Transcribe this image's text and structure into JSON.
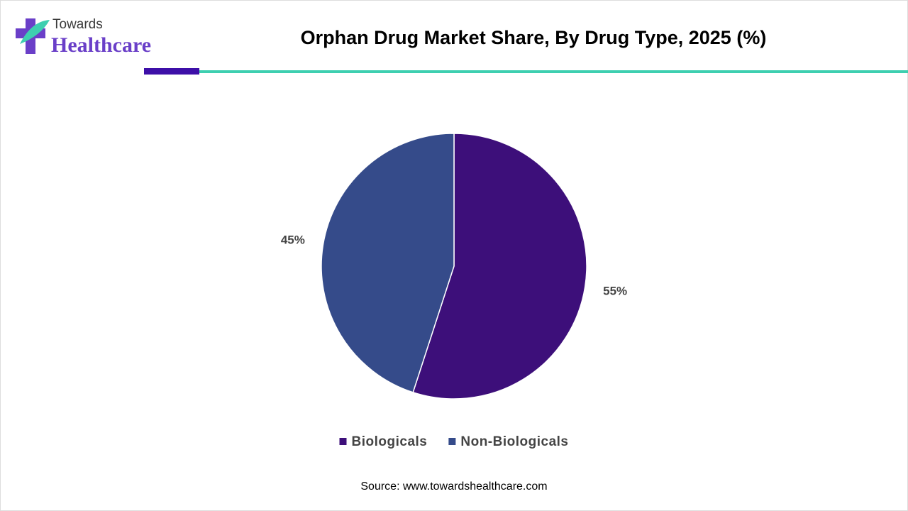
{
  "logo": {
    "top": "Towards",
    "bottom": "Healthcare"
  },
  "chart_data": {
    "type": "pie",
    "title": "Orphan Drug Market Share, By Drug Type, 2025 (%)",
    "categories": [
      "Biologicals",
      "Non-Biologicals"
    ],
    "values": [
      55,
      45
    ],
    "value_labels": [
      "55%",
      "45%"
    ],
    "colors": [
      "#3d0f7a",
      "#354b8a"
    ],
    "legend": "bottom",
    "source": "Source: www.towardshealthcare.com"
  }
}
